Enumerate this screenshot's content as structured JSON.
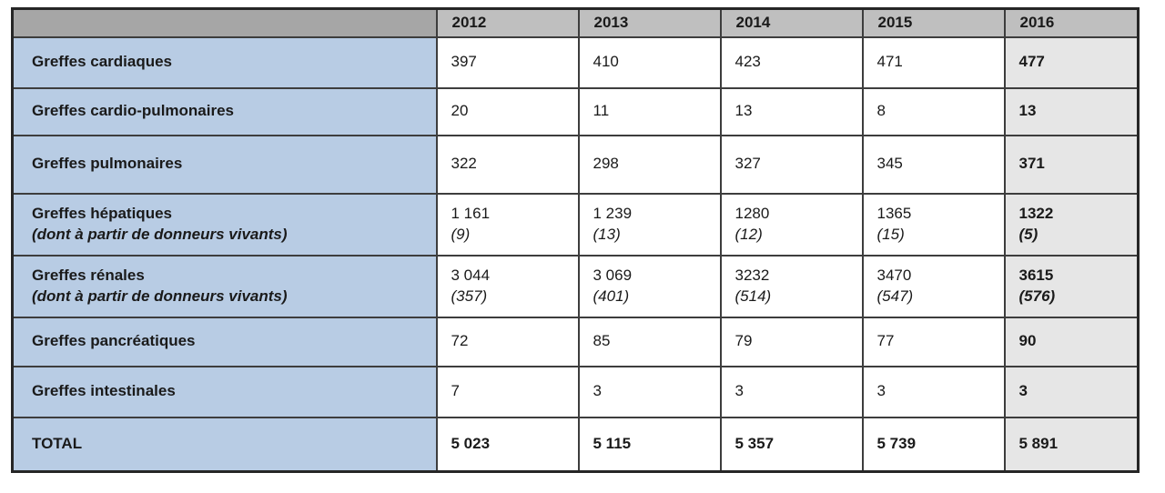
{
  "table": {
    "title_semantic": "Greffes (transplants) per year",
    "header": {
      "corner": "",
      "years": [
        "2012",
        "2013",
        "2014",
        "2015",
        "2016"
      ]
    },
    "rows": [
      {
        "label": "Greffes cardiaques",
        "values": [
          "397",
          "410",
          "423",
          "471",
          "477"
        ]
      },
      {
        "label": "Greffes cardio-pulmonaires",
        "values": [
          "20",
          "11",
          "13",
          "8",
          "13"
        ]
      },
      {
        "label": "Greffes pulmonaires",
        "values": [
          "322",
          "298",
          "327",
          "345",
          "371"
        ]
      },
      {
        "label": "Greffes hépatiques",
        "sub": "(dont à partir de donneurs vivants)",
        "values": [
          "1 161",
          "1 239",
          "1280",
          "1365",
          "1322"
        ],
        "subvalues": [
          "(9)",
          "(13)",
          "(12)",
          "(15)",
          "(5)"
        ]
      },
      {
        "label": "Greffes rénales",
        "sub": "(dont à partir de donneurs vivants)",
        "values": [
          "3 044",
          "3 069",
          "3232",
          "3470",
          "3615"
        ],
        "subvalues": [
          "(357)",
          "(401)",
          "(514)",
          "(547)",
          "(576)"
        ]
      },
      {
        "label": "Greffes pancréatiques",
        "values": [
          "72",
          "85",
          "79",
          "77",
          "90"
        ]
      },
      {
        "label": "Greffes intestinales",
        "values": [
          "7",
          "3",
          "3",
          "3",
          "3"
        ]
      },
      {
        "label": "TOTAL",
        "values": [
          "5 023",
          "5 115",
          "5 357",
          "5 739",
          "5 891"
        ]
      }
    ],
    "colors": {
      "header_corner_gray": "#a6a6a6",
      "header_year_gray": "#bfbfbf",
      "label_column_blue": "#b8cce4",
      "last_column_gray": "#e6e6e6",
      "data_cell_white": "#ffffff",
      "border_dark": "#3d3d3d",
      "text": "#1a1a1a"
    }
  }
}
